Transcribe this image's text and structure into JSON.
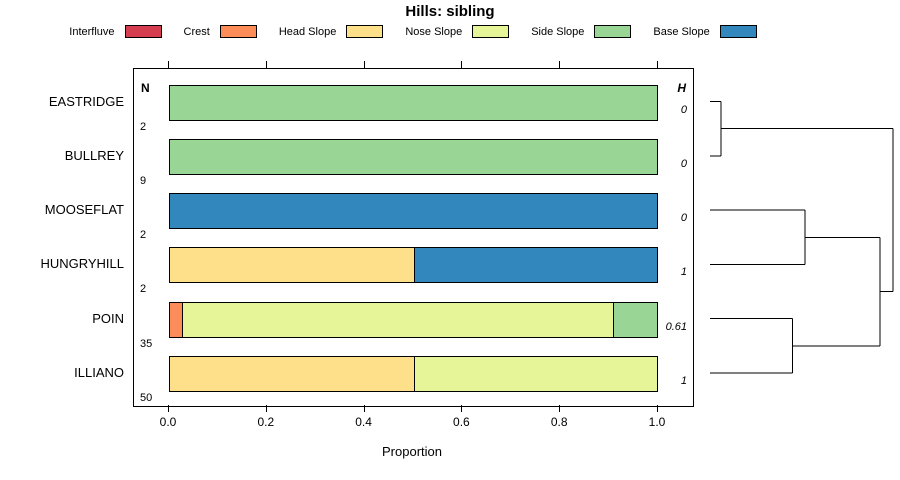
{
  "title": "Hills: sibling",
  "legend": [
    {
      "label": "Interfluve",
      "color": "#d53e4f"
    },
    {
      "label": "Crest",
      "color": "#fc8d59"
    },
    {
      "label": "Head Slope",
      "color": "#fee08b"
    },
    {
      "label": "Nose Slope",
      "color": "#e6f598"
    },
    {
      "label": "Side Slope",
      "color": "#99d594"
    },
    {
      "label": "Base Slope",
      "color": "#3288bd"
    }
  ],
  "chart_data": {
    "type": "bar",
    "orientation": "horizontal",
    "stacked": true,
    "title": "Hills: sibling",
    "xlabel": "Proportion",
    "xlim": [
      0,
      1
    ],
    "grid": false,
    "legend_position": "top",
    "left_column_header": "N",
    "right_column_header": "H",
    "series_names": [
      "Interfluve",
      "Crest",
      "Head Slope",
      "Nose Slope",
      "Side Slope",
      "Base Slope"
    ],
    "xticks": [
      {
        "label": "0.0",
        "value": 0.0
      },
      {
        "label": "0.2",
        "value": 0.2
      },
      {
        "label": "0.4",
        "value": 0.4
      },
      {
        "label": "0.6",
        "value": 0.6
      },
      {
        "label": "0.8",
        "value": 0.8
      },
      {
        "label": "1.0",
        "value": 1.0
      }
    ],
    "rows": [
      {
        "name": "EASTRIDGE",
        "n": "2",
        "h": "0",
        "segments": [
          {
            "series": "Side Slope",
            "value": 1.0
          }
        ]
      },
      {
        "name": "BULLREY",
        "n": "9",
        "h": "0",
        "segments": [
          {
            "series": "Side Slope",
            "value": 1.0
          }
        ]
      },
      {
        "name": "MOOSEFLAT",
        "n": "2",
        "h": "0",
        "segments": [
          {
            "series": "Base Slope",
            "value": 1.0
          }
        ]
      },
      {
        "name": "HUNGRYHILL",
        "n": "2",
        "h": "1",
        "segments": [
          {
            "series": "Head Slope",
            "value": 0.5
          },
          {
            "series": "Base Slope",
            "value": 0.5
          }
        ]
      },
      {
        "name": "POIN",
        "n": "35",
        "h": "0.61",
        "segments": [
          {
            "series": "Crest",
            "value": 0.025
          },
          {
            "series": "Nose Slope",
            "value": 0.885
          },
          {
            "series": "Side Slope",
            "value": 0.09
          }
        ]
      },
      {
        "name": "ILLIANO",
        "n": "50",
        "h": "1",
        "segments": [
          {
            "series": "Head Slope",
            "value": 0.5
          },
          {
            "series": "Nose Slope",
            "value": 0.5
          }
        ]
      }
    ],
    "dendrogram": {
      "leaves": [
        "EASTRIDGE",
        "BULLREY",
        "MOOSEFLAT",
        "HUNGRYHILL",
        "POIN",
        "ILLIANO"
      ],
      "merges": [
        {
          "id": "c1",
          "a": "L0",
          "b": "L1",
          "height": 0.06
        },
        {
          "id": "c2",
          "a": "L2",
          "b": "L3",
          "height": 0.52
        },
        {
          "id": "c3",
          "a": "L4",
          "b": "L5",
          "height": 0.45
        },
        {
          "id": "c4",
          "a": "c2",
          "b": "c3",
          "height": 0.93
        },
        {
          "id": "c5",
          "a": "c1",
          "b": "c4",
          "height": 1.0
        }
      ]
    }
  }
}
